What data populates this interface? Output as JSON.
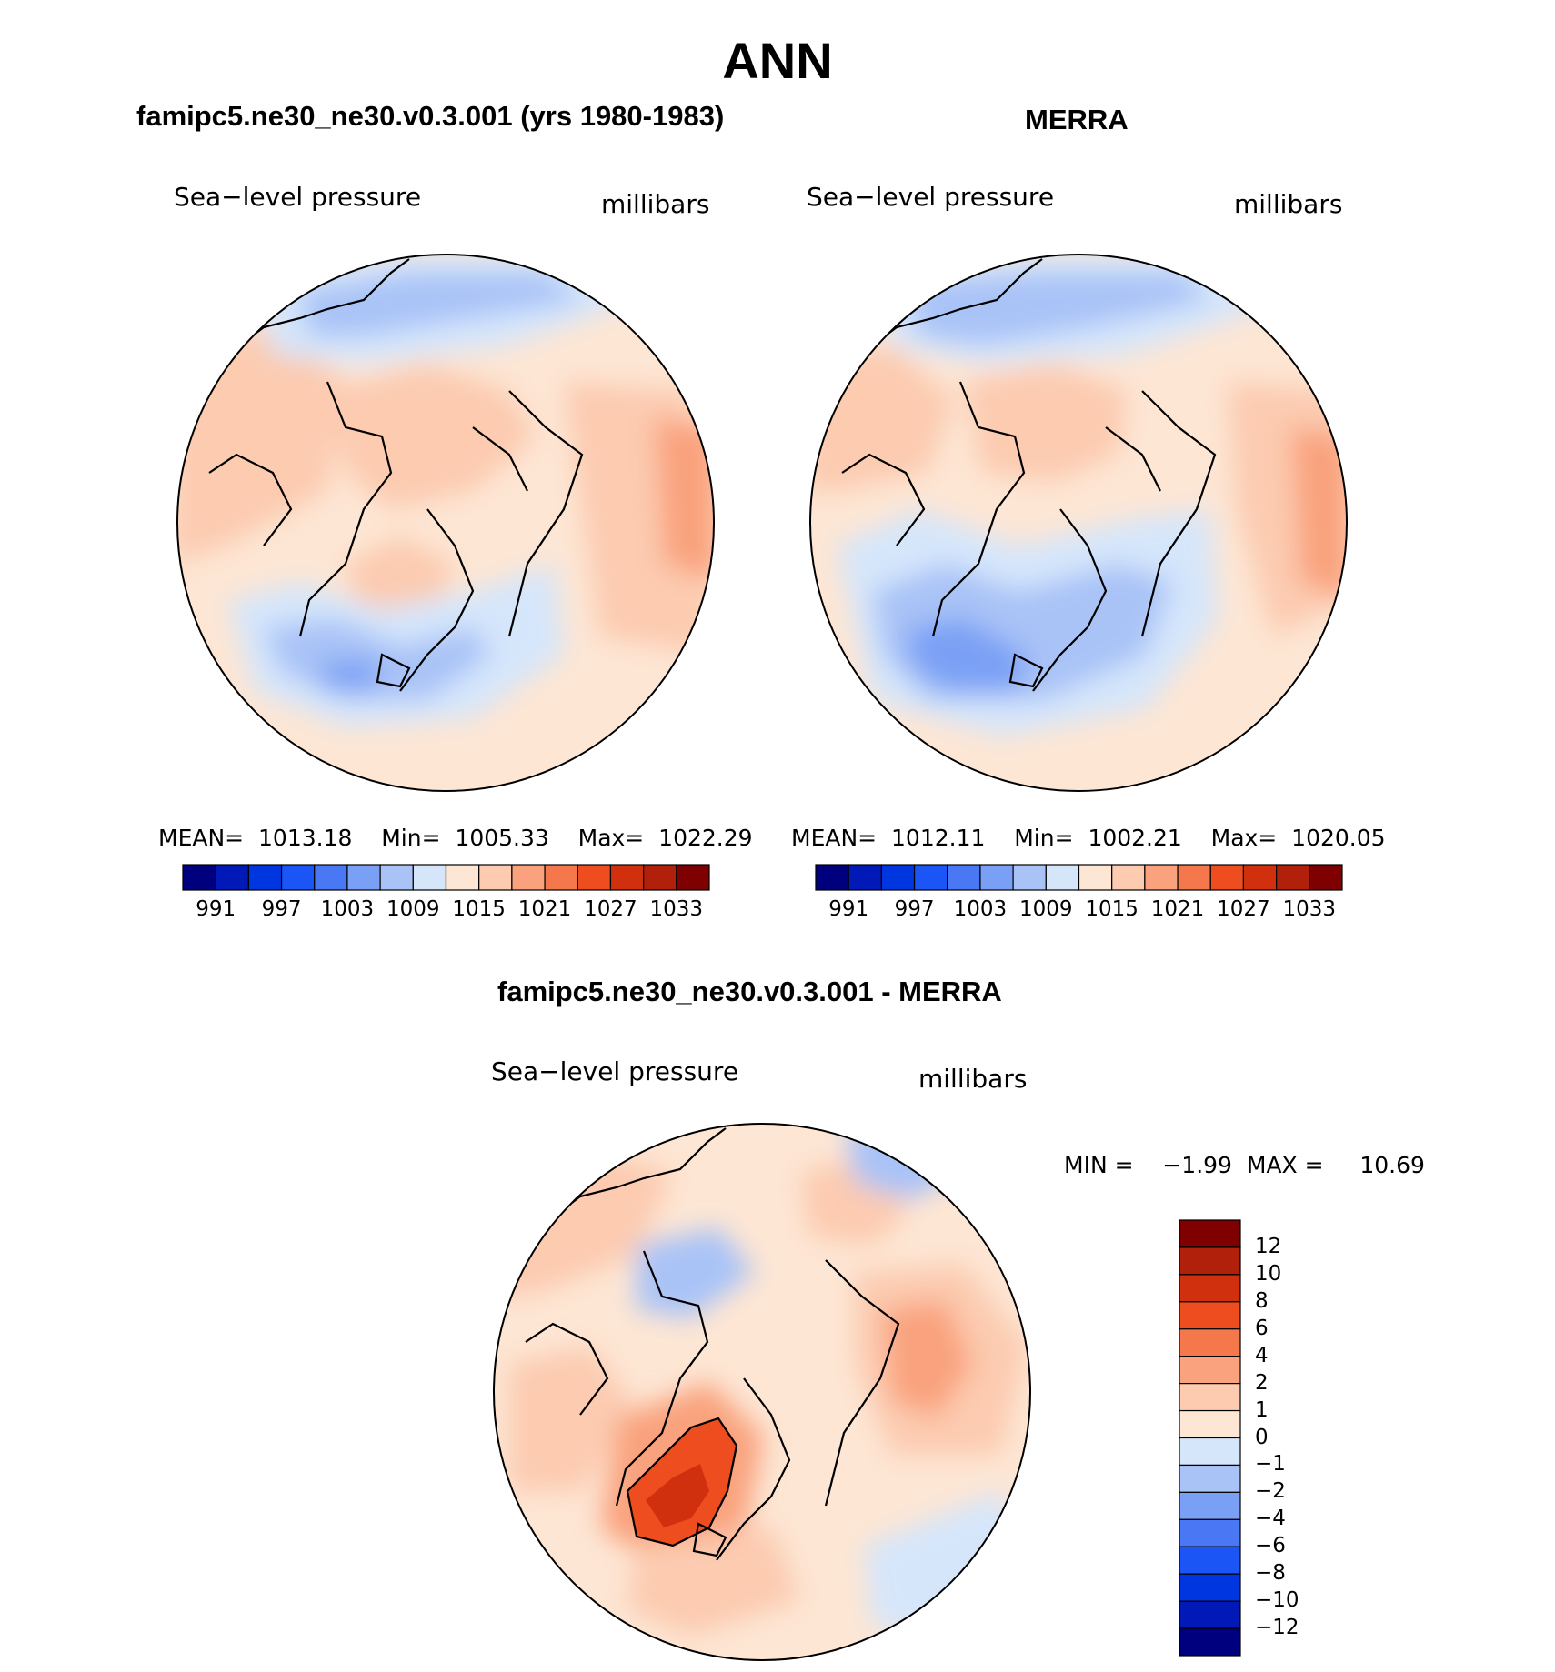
{
  "page_title": "ANN",
  "chart_data": [
    {
      "type": "heatmap",
      "panel": "model",
      "title": "famipc5.ne30_ne30.v0.3.001 (yrs 1980-1983)",
      "left_label": "Sea−level pressure",
      "right_label": "millibars",
      "stats": {
        "mean_label": "MEAN=",
        "mean": "1013.18",
        "min_label": "Min=",
        "min": "1005.33",
        "max_label": "Max=",
        "max": "1022.29"
      },
      "colorbar": {
        "orientation": "horizontal",
        "levels": [
          991,
          994,
          997,
          1000,
          1003,
          1006,
          1009,
          1012,
          1015,
          1018,
          1021,
          1024,
          1027,
          1030,
          1033
        ],
        "tick_labels": [
          "991",
          "997",
          "1003",
          "1009",
          "1015",
          "1021",
          "1027",
          "1033"
        ]
      },
      "projection": "north polar stereographic"
    },
    {
      "type": "heatmap",
      "panel": "obs",
      "title": "MERRA",
      "left_label": "Sea−level pressure",
      "right_label": "millibars",
      "stats": {
        "mean_label": "MEAN=",
        "mean": "1012.11",
        "min_label": "Min=",
        "min": "1002.21",
        "max_label": "Max=",
        "max": "1020.05"
      },
      "colorbar": {
        "orientation": "horizontal",
        "levels": [
          991,
          994,
          997,
          1000,
          1003,
          1006,
          1009,
          1012,
          1015,
          1018,
          1021,
          1024,
          1027,
          1030,
          1033
        ],
        "tick_labels": [
          "991",
          "997",
          "1003",
          "1009",
          "1015",
          "1021",
          "1027",
          "1033"
        ]
      },
      "projection": "north polar stereographic"
    },
    {
      "type": "heatmap",
      "panel": "diff",
      "title": "famipc5.ne30_ne30.v0.3.001 - MERRA",
      "left_label": "Sea−level pressure",
      "right_label": "millibars",
      "stats": {
        "min_label": "MIN =",
        "min": "−1.99",
        "max_label": "MAX =",
        "max": "10.69"
      },
      "colorbar": {
        "orientation": "vertical",
        "levels": [
          -12,
          -10,
          -8,
          -6,
          -4,
          -2,
          -1,
          0,
          1,
          2,
          4,
          6,
          8,
          10,
          12
        ],
        "tick_labels": [
          "12",
          "10",
          "8",
          "6",
          "4",
          "2",
          "1",
          "0",
          "−1",
          "−2",
          "−4",
          "−6",
          "−8",
          "−10",
          "−12"
        ]
      },
      "projection": "north polar stereographic"
    }
  ],
  "colors": {
    "mean_palette": [
      "#00007f",
      "#0019b7",
      "#0036e0",
      "#1c55f5",
      "#4a78f5",
      "#7aa0f5",
      "#a9c3f7",
      "#d5e6fb",
      "#fde6d4",
      "#fccbb0",
      "#f9a27d",
      "#f5784c",
      "#ee4d1f",
      "#d1300e",
      "#b0200a",
      "#7f0000"
    ],
    "diff_palette": [
      "#00007f",
      "#0019b7",
      "#0036e0",
      "#1c55f5",
      "#4a78f5",
      "#7aa0f5",
      "#a9c3f7",
      "#d5e6fb",
      "#fde6d4",
      "#fccbb0",
      "#f9a27d",
      "#f5784c",
      "#ee4d1f",
      "#d1300e",
      "#b0200a",
      "#7f0000"
    ]
  }
}
